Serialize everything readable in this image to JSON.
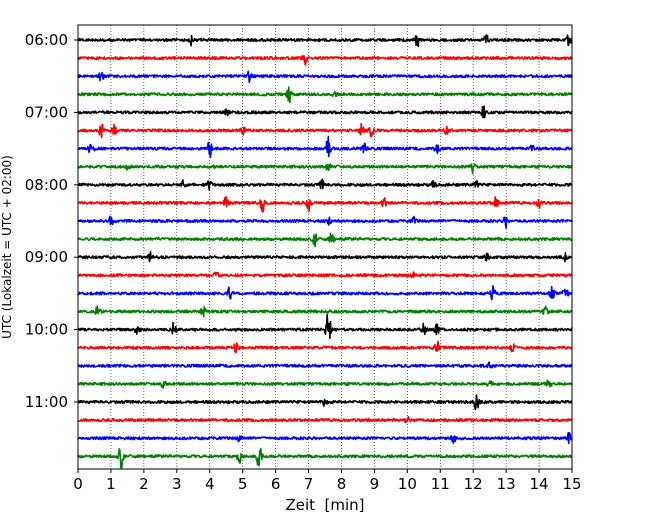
{
  "chart_data": {
    "type": "line",
    "title": "",
    "xlabel": "Zeit  [min]",
    "ylabel": "UTC (Lokalzeit = UTC + 02:00)",
    "xlim": [
      0,
      15
    ],
    "x_ticks": [
      0,
      1,
      2,
      3,
      4,
      5,
      6,
      7,
      8,
      9,
      10,
      11,
      12,
      13,
      14,
      15
    ],
    "x_grid": "dotted vertical lines at each minute",
    "row_interval_minutes": 15,
    "start_time": "06:00",
    "y_tick_labels": [
      "06:00",
      "07:00",
      "08:00",
      "09:00",
      "10:00",
      "11:00"
    ],
    "y_tick_rows": [
      0,
      4,
      8,
      12,
      16,
      20
    ],
    "row_colors": [
      "#000000",
      "#ff0000",
      "#0000ff",
      "#008000"
    ],
    "rows": [
      {
        "time": "06:00",
        "color": "black",
        "events": [
          {
            "t": 3.4,
            "a": 1.0
          },
          {
            "t": 10.3,
            "a": 1.0
          },
          {
            "t": 12.4,
            "a": 0.6
          },
          {
            "t": 14.9,
            "a": 0.7
          }
        ]
      },
      {
        "time": "06:15",
        "color": "red",
        "events": [
          {
            "t": 6.9,
            "a": 0.9
          }
        ]
      },
      {
        "time": "06:30",
        "color": "blue",
        "events": [
          {
            "t": 0.7,
            "a": 1.0
          },
          {
            "t": 5.2,
            "a": 0.8
          }
        ]
      },
      {
        "time": "06:45",
        "color": "green",
        "events": [
          {
            "t": 6.4,
            "a": 1.3
          },
          {
            "t": 7.8,
            "a": 0.4
          }
        ]
      },
      {
        "time": "07:00",
        "color": "black",
        "events": [
          {
            "t": 4.5,
            "a": 0.5
          },
          {
            "t": 12.3,
            "a": 1.0
          }
        ]
      },
      {
        "time": "07:15",
        "color": "red",
        "events": [
          {
            "t": 0.7,
            "a": 1.1
          },
          {
            "t": 1.1,
            "a": 0.8
          },
          {
            "t": 5.0,
            "a": 0.9
          },
          {
            "t": 8.6,
            "a": 0.9
          },
          {
            "t": 8.9,
            "a": 0.7
          },
          {
            "t": 11.2,
            "a": 0.5
          }
        ]
      },
      {
        "time": "07:30",
        "color": "blue",
        "events": [
          {
            "t": 0.4,
            "a": 1.3
          },
          {
            "t": 4.0,
            "a": 1.2
          },
          {
            "t": 7.6,
            "a": 1.9
          },
          {
            "t": 8.7,
            "a": 0.8
          },
          {
            "t": 10.9,
            "a": 0.8
          },
          {
            "t": 13.8,
            "a": 0.5
          }
        ]
      },
      {
        "time": "07:45",
        "color": "green",
        "events": [
          {
            "t": 1.5,
            "a": 0.8
          },
          {
            "t": 7.6,
            "a": 0.6
          },
          {
            "t": 12.0,
            "a": 0.9
          }
        ]
      },
      {
        "time": "08:00",
        "color": "black",
        "events": [
          {
            "t": 3.2,
            "a": 1.0
          },
          {
            "t": 4.0,
            "a": 0.7
          },
          {
            "t": 7.4,
            "a": 0.7
          },
          {
            "t": 10.8,
            "a": 0.5
          },
          {
            "t": 12.1,
            "a": 0.6
          }
        ]
      },
      {
        "time": "08:15",
        "color": "red",
        "events": [
          {
            "t": 4.5,
            "a": 0.9
          },
          {
            "t": 5.6,
            "a": 1.2
          },
          {
            "t": 7.0,
            "a": 1.1
          },
          {
            "t": 9.3,
            "a": 0.8
          },
          {
            "t": 12.7,
            "a": 1.0
          },
          {
            "t": 14.0,
            "a": 0.7
          }
        ]
      },
      {
        "time": "08:30",
        "color": "blue",
        "events": [
          {
            "t": 1.0,
            "a": 0.7
          },
          {
            "t": 7.6,
            "a": 0.5
          },
          {
            "t": 10.2,
            "a": 0.5
          },
          {
            "t": 13.0,
            "a": 0.9
          }
        ]
      },
      {
        "time": "08:45",
        "color": "green",
        "events": [
          {
            "t": 7.2,
            "a": 1.0
          },
          {
            "t": 7.7,
            "a": 0.8
          }
        ]
      },
      {
        "time": "09:00",
        "color": "black",
        "events": [
          {
            "t": 2.2,
            "a": 0.6
          },
          {
            "t": 12.4,
            "a": 0.6
          },
          {
            "t": 14.8,
            "a": 0.5
          }
        ]
      },
      {
        "time": "09:15",
        "color": "red",
        "events": [
          {
            "t": 4.2,
            "a": 0.4
          },
          {
            "t": 10.2,
            "a": 0.4
          }
        ]
      },
      {
        "time": "09:30",
        "color": "blue",
        "events": [
          {
            "t": 4.6,
            "a": 0.8
          },
          {
            "t": 12.6,
            "a": 1.1
          },
          {
            "t": 14.4,
            "a": 1.0
          },
          {
            "t": 14.8,
            "a": 1.1
          }
        ]
      },
      {
        "time": "09:45",
        "color": "green",
        "events": [
          {
            "t": 0.6,
            "a": 0.7
          },
          {
            "t": 3.8,
            "a": 0.8
          },
          {
            "t": 14.2,
            "a": 0.6
          }
        ]
      },
      {
        "time": "10:00",
        "color": "black",
        "events": [
          {
            "t": 1.8,
            "a": 0.8
          },
          {
            "t": 2.9,
            "a": 1.4
          },
          {
            "t": 7.6,
            "a": 3.0
          },
          {
            "t": 10.5,
            "a": 0.9
          },
          {
            "t": 10.9,
            "a": 0.7
          }
        ]
      },
      {
        "time": "10:15",
        "color": "red",
        "events": [
          {
            "t": 4.8,
            "a": 0.7
          },
          {
            "t": 10.9,
            "a": 1.1
          },
          {
            "t": 13.2,
            "a": 0.6
          }
        ]
      },
      {
        "time": "10:30",
        "color": "blue",
        "events": [
          {
            "t": 12.5,
            "a": 0.4
          }
        ]
      },
      {
        "time": "10:45",
        "color": "green",
        "events": [
          {
            "t": 2.6,
            "a": 0.6
          },
          {
            "t": 12.5,
            "a": 0.8
          },
          {
            "t": 14.3,
            "a": 0.7
          }
        ]
      },
      {
        "time": "11:00",
        "color": "black",
        "events": [
          {
            "t": 7.5,
            "a": 0.8
          },
          {
            "t": 12.1,
            "a": 1.2
          }
        ]
      },
      {
        "time": "11:15",
        "color": "red",
        "events": [
          {
            "t": 10.0,
            "a": 0.4
          }
        ]
      },
      {
        "time": "11:30",
        "color": "blue",
        "events": [
          {
            "t": 4.9,
            "a": 0.5
          },
          {
            "t": 11.4,
            "a": 0.7
          },
          {
            "t": 14.9,
            "a": 0.8
          }
        ]
      },
      {
        "time": "11:45",
        "color": "green",
        "events": [
          {
            "t": 1.3,
            "a": 1.8
          },
          {
            "t": 4.9,
            "a": 0.9
          },
          {
            "t": 5.5,
            "a": 2.5
          }
        ]
      }
    ]
  }
}
